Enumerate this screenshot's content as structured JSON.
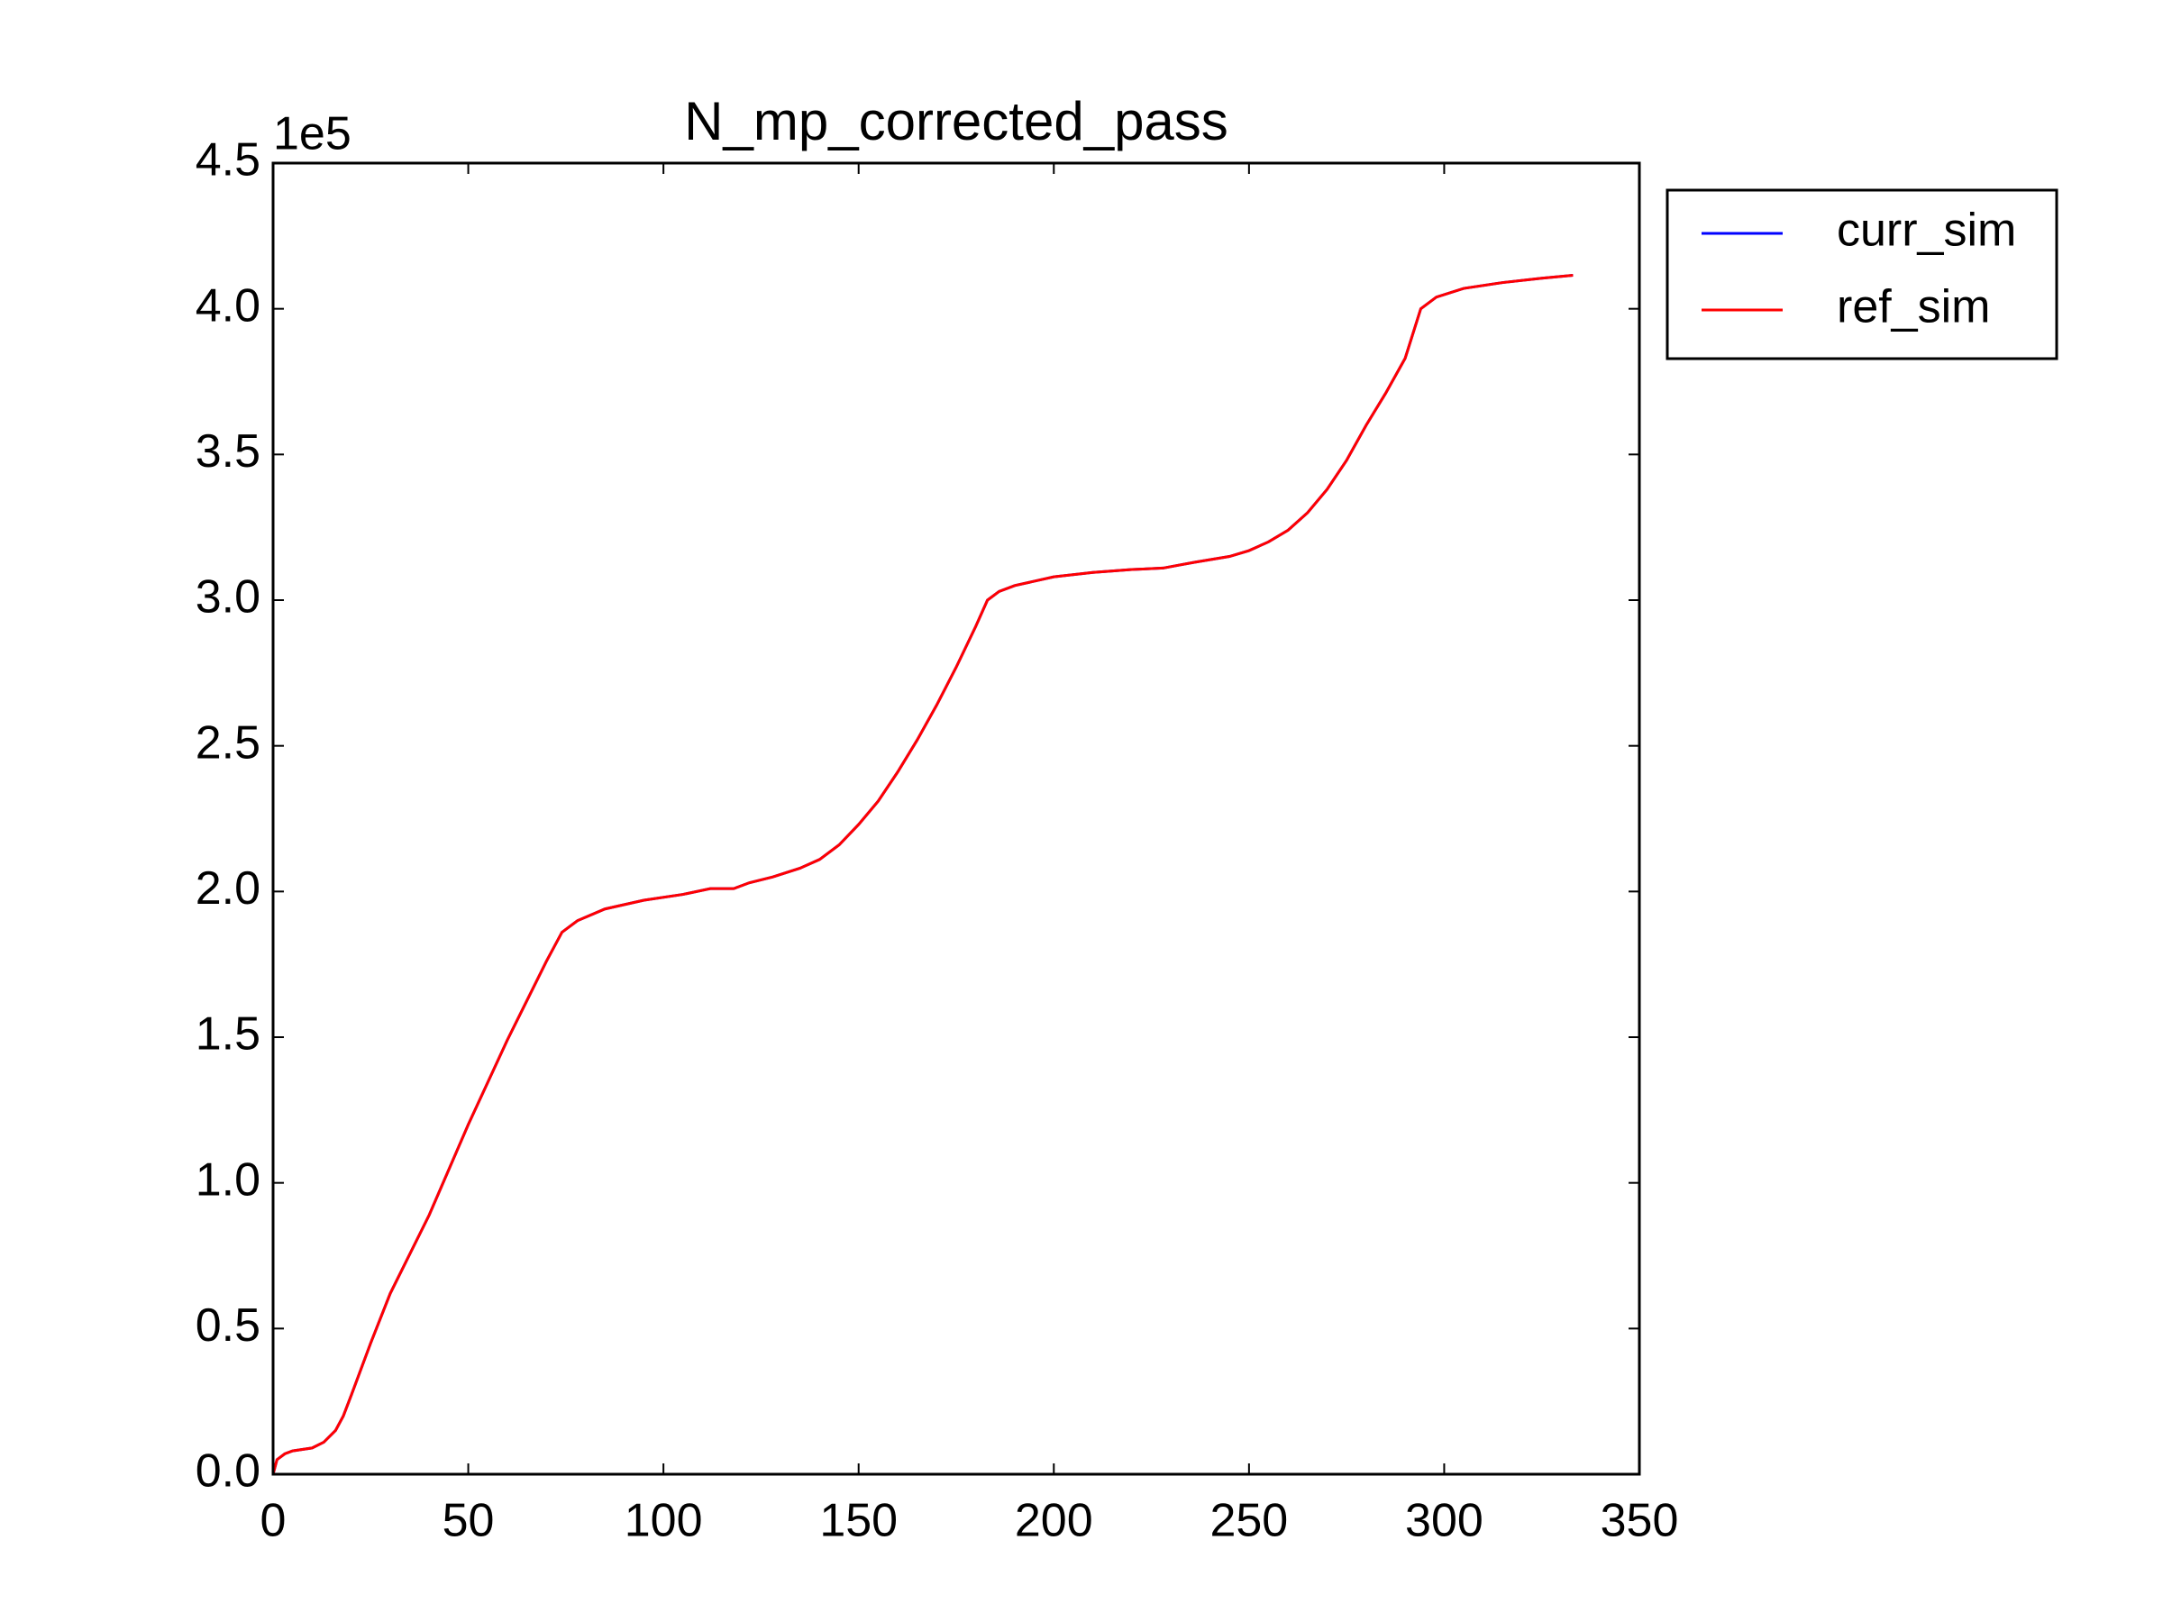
{
  "chart_data": {
    "type": "line",
    "title": "N_mp_corrected_pass",
    "y_offset_label": "1e5",
    "x": [
      0,
      1,
      3,
      5,
      10,
      13,
      16,
      18,
      20,
      25,
      30,
      40,
      50,
      60,
      70,
      74,
      78,
      85,
      95,
      105,
      112,
      118,
      122,
      128,
      135,
      140,
      145,
      150,
      155,
      160,
      165,
      170,
      175,
      180,
      183,
      186,
      190,
      200,
      210,
      220,
      228,
      232,
      236,
      245,
      250,
      255,
      260,
      265,
      270,
      275,
      280,
      285,
      290,
      294,
      298,
      305,
      315,
      325,
      333
    ],
    "series": [
      {
        "name": "curr_sim",
        "color": "#0000ff",
        "values": [
          0,
          0.05,
          0.07,
          0.08,
          0.09,
          0.11,
          0.15,
          0.2,
          0.27,
          0.45,
          0.62,
          0.89,
          1.2,
          1.49,
          1.76,
          1.86,
          1.9,
          1.94,
          1.97,
          1.99,
          2.01,
          2.01,
          2.03,
          2.05,
          2.08,
          2.11,
          2.16,
          2.23,
          2.31,
          2.41,
          2.52,
          2.64,
          2.77,
          2.91,
          3.0,
          3.03,
          3.05,
          3.08,
          3.095,
          3.105,
          3.11,
          3.12,
          3.13,
          3.15,
          3.17,
          3.2,
          3.24,
          3.3,
          3.38,
          3.48,
          3.6,
          3.71,
          3.83,
          4.0,
          4.04,
          4.07,
          4.09,
          4.105,
          4.115
        ]
      },
      {
        "name": "ref_sim",
        "color": "#ff0000",
        "values": [
          0,
          0.05,
          0.07,
          0.08,
          0.09,
          0.11,
          0.15,
          0.2,
          0.27,
          0.45,
          0.62,
          0.89,
          1.2,
          1.49,
          1.76,
          1.86,
          1.9,
          1.94,
          1.97,
          1.99,
          2.01,
          2.01,
          2.03,
          2.05,
          2.08,
          2.11,
          2.16,
          2.23,
          2.31,
          2.41,
          2.52,
          2.64,
          2.77,
          2.91,
          3.0,
          3.03,
          3.05,
          3.08,
          3.095,
          3.105,
          3.11,
          3.12,
          3.13,
          3.15,
          3.17,
          3.2,
          3.24,
          3.3,
          3.38,
          3.48,
          3.6,
          3.71,
          3.83,
          4.0,
          4.04,
          4.07,
          4.09,
          4.105,
          4.115
        ]
      }
    ],
    "xlim": [
      0,
      350
    ],
    "xticks": [
      0,
      50,
      100,
      150,
      200,
      250,
      300,
      350
    ],
    "ylim": [
      0,
      4.5
    ],
    "yticks": [
      {
        "value": 0,
        "label": "0.0"
      },
      0.5,
      {
        "value": 1,
        "label": "1.0"
      },
      1.5,
      {
        "value": 2,
        "label": "2.0"
      },
      2.5,
      {
        "value": 3,
        "label": "3.0"
      },
      3.5,
      {
        "value": 4,
        "label": "4.0"
      },
      4.5
    ],
    "grid": false,
    "legend": "upper-right-outside"
  }
}
